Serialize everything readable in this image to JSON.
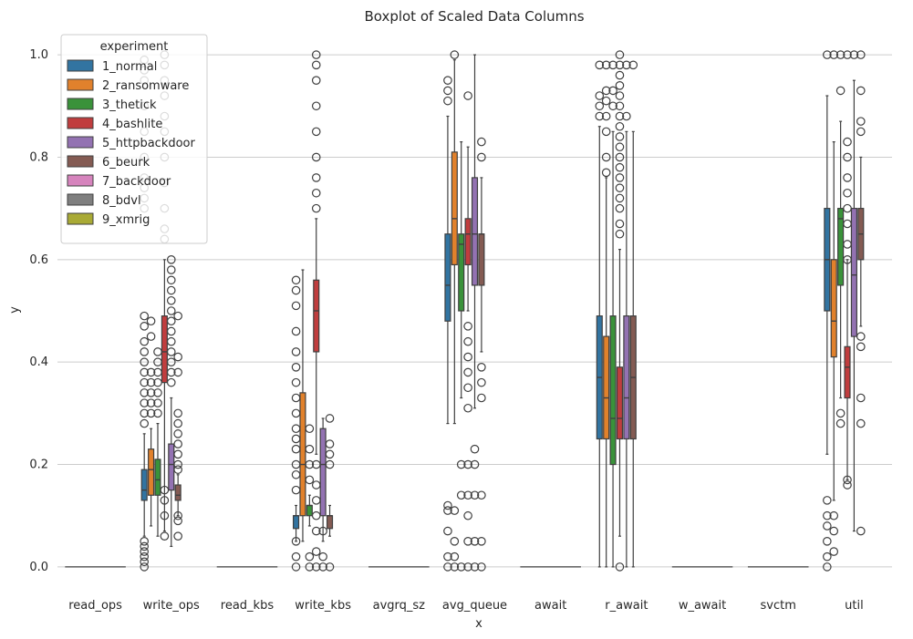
{
  "chart_data": {
    "type": "boxplot",
    "title": "Boxplot of Scaled Data Columns",
    "xlabel": "x",
    "ylabel": "y",
    "ylim": [
      -0.05,
      1.05
    ],
    "yticks": [
      0.0,
      0.2,
      0.4,
      0.6,
      0.8,
      1.0
    ],
    "ytick_labels": [
      "0.0",
      "0.2",
      "0.4",
      "0.6",
      "0.8",
      "1.0"
    ],
    "grid": "horizontal",
    "legend": {
      "title": "experiment",
      "placement": "top-left",
      "entries": [
        {
          "name": "1_normal",
          "color": "#3274a1"
        },
        {
          "name": "2_ransomware",
          "color": "#e1812c"
        },
        {
          "name": "3_thetick",
          "color": "#3a923a"
        },
        {
          "name": "4_bashlite",
          "color": "#c03d3e"
        },
        {
          "name": "5_httpbackdoor",
          "color": "#9372b2"
        },
        {
          "name": "6_beurk",
          "color": "#845b53"
        },
        {
          "name": "7_backdoor",
          "color": "#d684bd"
        },
        {
          "name": "8_bdvl",
          "color": "#7f7f7f"
        },
        {
          "name": "9_xmrig",
          "color": "#a9aa35"
        }
      ]
    },
    "categories": [
      "read_ops",
      "write_ops",
      "read_kbs",
      "write_kbs",
      "avgrq_sz",
      "avg_queue",
      "await",
      "r_await",
      "w_await",
      "svctm",
      "util"
    ],
    "groups": [
      {
        "category": "read_ops",
        "boxes": []
      },
      {
        "category": "write_ops",
        "boxes": [
          {
            "series": "1_normal",
            "q1": 0.13,
            "median": 0.15,
            "q3": 0.19,
            "wlo": 0.06,
            "whi": 0.26,
            "outliers": [
              0.0,
              0.01,
              0.02,
              0.03,
              0.04,
              0.05,
              0.28,
              0.3,
              0.32,
              0.34,
              0.36,
              0.38,
              0.4,
              0.42,
              0.44,
              0.47,
              0.49,
              0.7,
              0.72,
              0.74,
              0.76,
              0.8,
              0.85,
              0.9,
              0.95,
              0.97,
              0.99
            ]
          },
          {
            "series": "2_ransomware",
            "q1": 0.14,
            "median": 0.19,
            "q3": 0.23,
            "wlo": 0.08,
            "whi": 0.27,
            "outliers": [
              0.3,
              0.32,
              0.34,
              0.36,
              0.38,
              0.45,
              0.48
            ]
          },
          {
            "series": "3_thetick",
            "q1": 0.14,
            "median": 0.17,
            "q3": 0.21,
            "wlo": 0.06,
            "whi": 0.28,
            "outliers": [
              0.3,
              0.32,
              0.34,
              0.36,
              0.38,
              0.4,
              0.42
            ]
          },
          {
            "series": "4_bashlite",
            "q1": 0.36,
            "median": 0.42,
            "q3": 0.49,
            "wlo": 0.07,
            "whi": 0.6,
            "outliers": [
              0.06,
              0.1,
              0.13,
              0.15,
              0.64,
              0.66,
              0.7,
              0.75,
              0.8,
              0.85,
              0.88,
              0.92,
              0.95,
              0.98,
              1.0
            ]
          },
          {
            "series": "5_httpbackdoor",
            "q1": 0.15,
            "median": 0.2,
            "q3": 0.24,
            "wlo": 0.04,
            "whi": 0.33,
            "outliers": [
              0.36,
              0.38,
              0.4,
              0.42,
              0.44,
              0.46,
              0.48,
              0.5,
              0.52,
              0.54,
              0.56,
              0.58,
              0.6
            ]
          },
          {
            "series": "6_beurk",
            "q1": 0.13,
            "median": 0.14,
            "q3": 0.16,
            "wlo": 0.1,
            "whi": 0.18,
            "outliers": [
              0.06,
              0.09,
              0.1,
              0.19,
              0.2,
              0.22,
              0.24,
              0.26,
              0.28,
              0.3,
              0.38,
              0.41,
              0.49
            ]
          }
        ]
      },
      {
        "category": "read_kbs",
        "boxes": []
      },
      {
        "category": "write_kbs",
        "boxes": [
          {
            "series": "1_normal",
            "q1": 0.075,
            "median": 0.1,
            "q3": 0.1,
            "wlo": 0.05,
            "whi": 0.12,
            "outliers": [
              0.0,
              0.02,
              0.05,
              0.15,
              0.18,
              0.2,
              0.23,
              0.25,
              0.27,
              0.3,
              0.33,
              0.36,
              0.39,
              0.42,
              0.46,
              0.51,
              0.54,
              0.56
            ]
          },
          {
            "series": "2_ransomware",
            "q1": 0.1,
            "median": 0.2,
            "q3": 0.34,
            "wlo": 0.05,
            "whi": 0.58,
            "outliers": []
          },
          {
            "series": "3_thetick",
            "q1": 0.1,
            "median": 0.12,
            "q3": 0.12,
            "wlo": 0.08,
            "whi": 0.14,
            "outliers": [
              0.0,
              0.02,
              0.17,
              0.2,
              0.23,
              0.27
            ]
          },
          {
            "series": "4_bashlite",
            "q1": 0.42,
            "median": 0.5,
            "q3": 0.56,
            "wlo": 0.22,
            "whi": 0.68,
            "outliers": [
              0.0,
              0.03,
              0.07,
              0.1,
              0.13,
              0.16,
              0.2,
              0.7,
              0.73,
              0.76,
              0.8,
              0.85,
              0.9,
              0.95,
              0.98,
              1.0
            ]
          },
          {
            "series": "5_httpbackdoor",
            "q1": 0.1,
            "median": 0.2,
            "q3": 0.27,
            "wlo": 0.05,
            "whi": 0.29,
            "outliers": [
              0.0,
              0.02,
              0.07
            ]
          },
          {
            "series": "6_beurk",
            "q1": 0.075,
            "median": 0.1,
            "q3": 0.1,
            "wlo": 0.06,
            "whi": 0.12,
            "outliers": [
              0.0,
              0.2,
              0.22,
              0.24,
              0.29
            ]
          }
        ]
      },
      {
        "category": "avgrq_sz",
        "boxes": []
      },
      {
        "category": "avg_queue",
        "boxes": [
          {
            "series": "1_normal",
            "q1": 0.48,
            "median": 0.55,
            "q3": 0.65,
            "wlo": 0.28,
            "whi": 0.88,
            "outliers": [
              0.0,
              0.02,
              0.07,
              0.11,
              0.12,
              0.91,
              0.93,
              0.95
            ]
          },
          {
            "series": "2_ransomware",
            "q1": 0.59,
            "median": 0.68,
            "q3": 0.81,
            "wlo": 0.28,
            "whi": 0.99,
            "outliers": [
              0.0,
              0.02,
              0.05,
              0.11,
              1.0
            ]
          },
          {
            "series": "3_thetick",
            "q1": 0.5,
            "median": 0.63,
            "q3": 0.65,
            "wlo": 0.33,
            "whi": 0.83,
            "outliers": [
              0.0,
              0.14,
              0.2
            ]
          },
          {
            "series": "4_bashlite",
            "q1": 0.59,
            "median": 0.65,
            "q3": 0.68,
            "wlo": 0.5,
            "whi": 0.82,
            "outliers": [
              0.0,
              0.05,
              0.1,
              0.14,
              0.2,
              0.31,
              0.35,
              0.38,
              0.41,
              0.44,
              0.47,
              0.92
            ]
          },
          {
            "series": "5_httpbackdoor",
            "q1": 0.55,
            "median": 0.65,
            "q3": 0.76,
            "wlo": 0.31,
            "whi": 1.0,
            "outliers": [
              0.0,
              0.05,
              0.14,
              0.2,
              0.23
            ]
          },
          {
            "series": "6_beurk",
            "q1": 0.55,
            "median": 0.65,
            "q3": 0.65,
            "wlo": 0.42,
            "whi": 0.76,
            "outliers": [
              0.0,
              0.05,
              0.14,
              0.33,
              0.36,
              0.39,
              0.8,
              0.83
            ]
          }
        ]
      },
      {
        "category": "await",
        "boxes": []
      },
      {
        "category": "r_await",
        "boxes": [
          {
            "series": "1_normal",
            "q1": 0.25,
            "median": 0.37,
            "q3": 0.49,
            "wlo": 0.0,
            "whi": 0.86,
            "outliers": [
              0.88,
              0.9,
              0.92,
              0.98
            ]
          },
          {
            "series": "2_ransomware",
            "q1": 0.25,
            "median": 0.33,
            "q3": 0.45,
            "wlo": 0.0,
            "whi": 0.76,
            "outliers": [
              0.77,
              0.8,
              0.85,
              0.88,
              0.91,
              0.93,
              0.98
            ]
          },
          {
            "series": "3_thetick",
            "q1": 0.2,
            "median": 0.29,
            "q3": 0.49,
            "wlo": 0.0,
            "whi": 0.85,
            "outliers": [
              0.9,
              0.93,
              0.98
            ]
          },
          {
            "series": "4_bashlite",
            "q1": 0.25,
            "median": 0.29,
            "q3": 0.39,
            "wlo": 0.06,
            "whi": 0.62,
            "outliers": [
              0.0,
              0.65,
              0.67,
              0.7,
              0.72,
              0.74,
              0.76,
              0.78,
              0.8,
              0.82,
              0.84,
              0.86,
              0.88,
              0.9,
              0.92,
              0.94,
              0.96,
              0.98,
              1.0
            ]
          },
          {
            "series": "5_httpbackdoor",
            "q1": 0.25,
            "median": 0.33,
            "q3": 0.49,
            "wlo": 0.0,
            "whi": 0.85,
            "outliers": [
              0.88,
              0.98
            ]
          },
          {
            "series": "6_beurk",
            "q1": 0.25,
            "median": 0.37,
            "q3": 0.49,
            "wlo": 0.0,
            "whi": 0.85,
            "outliers": [
              0.98
            ]
          }
        ]
      },
      {
        "category": "w_await",
        "boxes": []
      },
      {
        "category": "svctm",
        "boxes": []
      },
      {
        "category": "util",
        "boxes": [
          {
            "series": "1_normal",
            "q1": 0.5,
            "median": 0.6,
            "q3": 0.7,
            "wlo": 0.22,
            "whi": 0.92,
            "outliers": [
              0.0,
              0.02,
              0.05,
              0.08,
              0.1,
              0.13,
              1.0
            ]
          },
          {
            "series": "2_ransomware",
            "q1": 0.41,
            "median": 0.48,
            "q3": 0.6,
            "wlo": 0.13,
            "whi": 0.83,
            "outliers": [
              0.03,
              0.07,
              0.1,
              1.0
            ]
          },
          {
            "series": "3_thetick",
            "q1": 0.55,
            "median": 0.68,
            "q3": 0.7,
            "wlo": 0.33,
            "whi": 0.87,
            "outliers": [
              0.28,
              0.3,
              0.93,
              1.0
            ]
          },
          {
            "series": "4_bashlite",
            "q1": 0.33,
            "median": 0.39,
            "q3": 0.43,
            "wlo": 0.17,
            "whi": 0.6,
            "outliers": [
              0.16,
              0.17,
              0.6,
              0.63,
              0.67,
              0.7,
              0.73,
              0.76,
              0.8,
              0.83,
              1.0
            ]
          },
          {
            "series": "5_httpbackdoor",
            "q1": 0.45,
            "median": 0.57,
            "q3": 0.7,
            "wlo": 0.07,
            "whi": 0.95,
            "outliers": [
              1.0
            ]
          },
          {
            "series": "6_beurk",
            "q1": 0.6,
            "median": 0.65,
            "q3": 0.7,
            "wlo": 0.47,
            "whi": 0.8,
            "outliers": [
              0.07,
              0.28,
              0.33,
              0.43,
              0.45,
              0.85,
              0.87,
              0.93,
              1.0
            ]
          }
        ]
      }
    ]
  }
}
